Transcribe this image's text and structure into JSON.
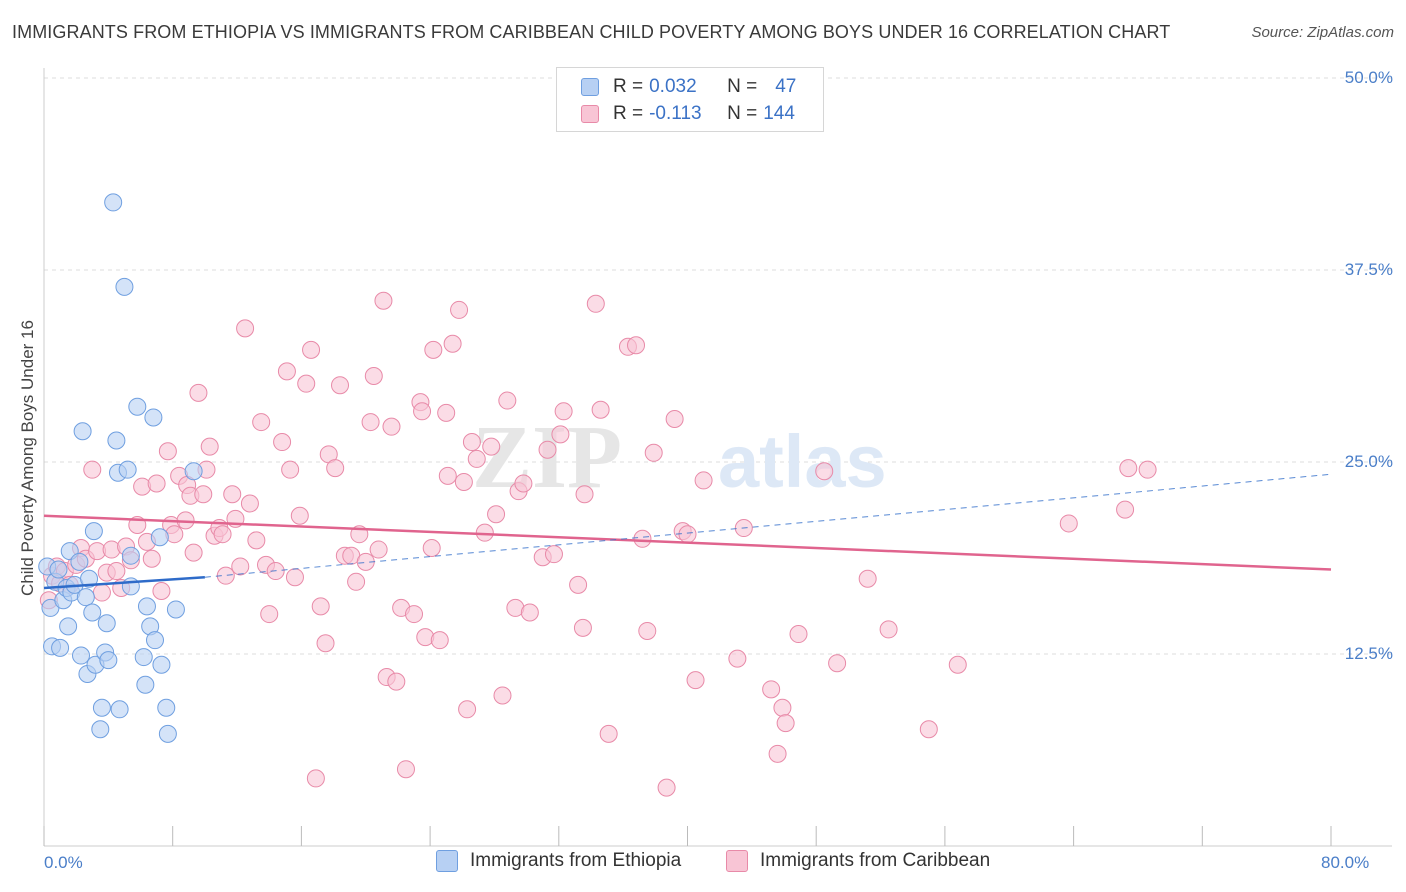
{
  "header": {
    "title": "IMMIGRANTS FROM ETHIOPIA VS IMMIGRANTS FROM CARIBBEAN CHILD POVERTY AMONG BOYS UNDER 16 CORRELATION CHART",
    "source": "Source: ZipAtlas.com"
  },
  "watermark": {
    "zip": "ZIP",
    "atlas": "atlas"
  },
  "colors": {
    "ethiopia_fill": "#b7d0f3",
    "ethiopia_stroke": "#6f9fe0",
    "ethiopia_line": "#2e6bc9",
    "caribbean_fill": "#f8c5d5",
    "caribbean_stroke": "#e88aa8",
    "caribbean_line": "#e0648e",
    "tick_text": "#4a7ec8"
  },
  "legend": {
    "rows": [
      {
        "r_label": "R = ",
        "r_value": "0.032",
        "n_label": "N = ",
        "n_value": "47"
      },
      {
        "r_label": "R = ",
        "r_value": "-0.113",
        "n_label": "N = ",
        "n_value": "144"
      }
    ],
    "bottom": [
      "Immigrants from Ethiopia",
      "Immigrants from Caribbean"
    ]
  },
  "chart_data": {
    "type": "scatter",
    "title": "IMMIGRANTS FROM ETHIOPIA VS IMMIGRANTS FROM CARIBBEAN CHILD POVERTY AMONG BOYS UNDER 16 CORRELATION CHART",
    "xlabel": "",
    "ylabel": "Child Poverty Among Boys Under 16",
    "xlim": [
      0,
      80
    ],
    "ylim": [
      0,
      50
    ],
    "x_tick_labels": [
      "0.0%",
      "80.0%"
    ],
    "y_ticks": [
      12.5,
      25.0,
      37.5,
      50.0
    ],
    "y_tick_labels": [
      "12.5%",
      "25.0%",
      "37.5%",
      "50.0%"
    ],
    "grid": true,
    "legend_position": "top-center",
    "series": [
      {
        "name": "Immigrants from Ethiopia",
        "r": 0.032,
        "n": 47,
        "trend": {
          "x": [
            0,
            10
          ],
          "y": [
            16.8,
            17.5
          ]
        },
        "trend_dashed": {
          "x": [
            10,
            80
          ],
          "y": [
            17.5,
            24.2
          ]
        },
        "points": [
          [
            0.2,
            18.2
          ],
          [
            0.4,
            15.5
          ],
          [
            0.5,
            13.0
          ],
          [
            0.7,
            17.2
          ],
          [
            0.9,
            18.0
          ],
          [
            1.0,
            12.9
          ],
          [
            1.2,
            16.0
          ],
          [
            1.4,
            16.8
          ],
          [
            1.5,
            14.3
          ],
          [
            1.6,
            19.2
          ],
          [
            1.7,
            16.5
          ],
          [
            1.9,
            17.0
          ],
          [
            2.2,
            18.5
          ],
          [
            2.3,
            12.4
          ],
          [
            2.4,
            27.0
          ],
          [
            2.6,
            16.2
          ],
          [
            2.7,
            11.2
          ],
          [
            2.8,
            17.4
          ],
          [
            3.0,
            15.2
          ],
          [
            3.1,
            20.5
          ],
          [
            3.2,
            11.8
          ],
          [
            3.5,
            7.6
          ],
          [
            3.6,
            9.0
          ],
          [
            3.8,
            12.6
          ],
          [
            3.9,
            14.5
          ],
          [
            4.0,
            12.1
          ],
          [
            4.3,
            41.9
          ],
          [
            4.5,
            26.4
          ],
          [
            4.6,
            24.3
          ],
          [
            4.7,
            8.9
          ],
          [
            5.0,
            36.4
          ],
          [
            5.2,
            24.5
          ],
          [
            5.4,
            18.9
          ],
          [
            5.4,
            16.9
          ],
          [
            5.8,
            28.6
          ],
          [
            6.2,
            12.3
          ],
          [
            6.3,
            10.5
          ],
          [
            6.4,
            15.6
          ],
          [
            6.6,
            14.3
          ],
          [
            6.8,
            27.9
          ],
          [
            6.9,
            13.4
          ],
          [
            7.2,
            20.1
          ],
          [
            7.3,
            11.8
          ],
          [
            7.6,
            9.0
          ],
          [
            7.7,
            7.3
          ],
          [
            8.2,
            15.4
          ],
          [
            9.3,
            24.4
          ]
        ]
      },
      {
        "name": "Immigrants from Caribbean",
        "r": -0.113,
        "n": 144,
        "trend": {
          "x": [
            0,
            80
          ],
          "y": [
            21.5,
            18.0
          ]
        },
        "points": [
          [
            0.3,
            16.0
          ],
          [
            0.5,
            17.6
          ],
          [
            0.8,
            18.2
          ],
          [
            1.0,
            17.1
          ],
          [
            1.3,
            17.9
          ],
          [
            1.6,
            17.0
          ],
          [
            2.0,
            18.3
          ],
          [
            2.3,
            19.4
          ],
          [
            2.6,
            18.7
          ],
          [
            3.0,
            24.5
          ],
          [
            3.3,
            19.2
          ],
          [
            3.6,
            16.5
          ],
          [
            3.9,
            17.8
          ],
          [
            4.2,
            19.3
          ],
          [
            4.5,
            17.9
          ],
          [
            4.8,
            16.8
          ],
          [
            5.1,
            19.5
          ],
          [
            5.4,
            18.6
          ],
          [
            5.8,
            20.9
          ],
          [
            6.1,
            23.4
          ],
          [
            6.4,
            19.8
          ],
          [
            6.7,
            18.7
          ],
          [
            7.0,
            23.6
          ],
          [
            7.3,
            16.6
          ],
          [
            7.7,
            25.7
          ],
          [
            7.9,
            20.9
          ],
          [
            8.1,
            20.3
          ],
          [
            8.4,
            24.1
          ],
          [
            8.8,
            21.2
          ],
          [
            8.9,
            23.5
          ],
          [
            9.1,
            22.8
          ],
          [
            9.3,
            19.1
          ],
          [
            9.6,
            29.5
          ],
          [
            9.9,
            22.9
          ],
          [
            10.1,
            24.5
          ],
          [
            10.3,
            26.0
          ],
          [
            10.6,
            20.2
          ],
          [
            10.9,
            20.7
          ],
          [
            11.1,
            20.3
          ],
          [
            11.3,
            17.6
          ],
          [
            11.7,
            22.9
          ],
          [
            11.9,
            21.3
          ],
          [
            12.2,
            18.2
          ],
          [
            12.5,
            33.7
          ],
          [
            12.8,
            22.3
          ],
          [
            13.2,
            19.9
          ],
          [
            13.5,
            27.6
          ],
          [
            13.8,
            18.3
          ],
          [
            14.0,
            15.1
          ],
          [
            14.4,
            17.9
          ],
          [
            14.8,
            26.3
          ],
          [
            15.1,
            30.9
          ],
          [
            15.3,
            24.5
          ],
          [
            15.6,
            17.5
          ],
          [
            15.9,
            21.5
          ],
          [
            16.3,
            30.1
          ],
          [
            16.6,
            32.3
          ],
          [
            16.9,
            4.4
          ],
          [
            17.2,
            15.6
          ],
          [
            17.5,
            13.2
          ],
          [
            17.7,
            25.5
          ],
          [
            18.1,
            24.6
          ],
          [
            18.4,
            30.0
          ],
          [
            18.7,
            18.9
          ],
          [
            19.1,
            18.9
          ],
          [
            19.4,
            17.2
          ],
          [
            19.6,
            20.3
          ],
          [
            20.0,
            18.5
          ],
          [
            20.3,
            27.6
          ],
          [
            20.5,
            30.6
          ],
          [
            20.8,
            19.3
          ],
          [
            21.1,
            35.5
          ],
          [
            21.3,
            11.0
          ],
          [
            21.6,
            27.3
          ],
          [
            21.9,
            10.7
          ],
          [
            22.2,
            15.5
          ],
          [
            22.5,
            5.0
          ],
          [
            23.0,
            15.1
          ],
          [
            23.4,
            28.9
          ],
          [
            23.5,
            28.3
          ],
          [
            23.7,
            13.6
          ],
          [
            24.1,
            19.4
          ],
          [
            24.2,
            32.3
          ],
          [
            24.6,
            13.4
          ],
          [
            25.0,
            28.2
          ],
          [
            25.1,
            24.1
          ],
          [
            25.4,
            32.7
          ],
          [
            25.8,
            34.9
          ],
          [
            26.1,
            23.7
          ],
          [
            26.3,
            8.9
          ],
          [
            26.6,
            26.3
          ],
          [
            26.9,
            25.2
          ],
          [
            27.4,
            20.4
          ],
          [
            27.8,
            26.0
          ],
          [
            28.1,
            21.6
          ],
          [
            28.5,
            9.8
          ],
          [
            28.8,
            29.0
          ],
          [
            29.3,
            15.5
          ],
          [
            29.5,
            23.1
          ],
          [
            29.8,
            23.6
          ],
          [
            30.2,
            15.2
          ],
          [
            31.0,
            18.8
          ],
          [
            31.3,
            25.8
          ],
          [
            31.7,
            19.0
          ],
          [
            32.1,
            26.8
          ],
          [
            32.3,
            28.3
          ],
          [
            33.2,
            17.0
          ],
          [
            33.5,
            14.2
          ],
          [
            33.6,
            22.9
          ],
          [
            34.3,
            35.3
          ],
          [
            34.6,
            28.4
          ],
          [
            35.1,
            7.3
          ],
          [
            36.3,
            32.5
          ],
          [
            36.8,
            32.6
          ],
          [
            37.2,
            20.0
          ],
          [
            37.5,
            14.0
          ],
          [
            37.9,
            25.6
          ],
          [
            38.7,
            3.8
          ],
          [
            39.2,
            27.8
          ],
          [
            39.7,
            20.5
          ],
          [
            40.0,
            20.3
          ],
          [
            40.5,
            10.8
          ],
          [
            41.0,
            23.8
          ],
          [
            43.1,
            12.2
          ],
          [
            43.5,
            20.7
          ],
          [
            45.2,
            10.2
          ],
          [
            45.6,
            6.0
          ],
          [
            45.9,
            9.0
          ],
          [
            46.1,
            8.0
          ],
          [
            46.9,
            13.8
          ],
          [
            48.5,
            24.4
          ],
          [
            49.3,
            11.9
          ],
          [
            51.2,
            17.4
          ],
          [
            52.5,
            14.1
          ],
          [
            55.0,
            7.6
          ],
          [
            56.8,
            11.8
          ],
          [
            63.7,
            21.0
          ],
          [
            67.2,
            21.9
          ],
          [
            67.4,
            24.6
          ],
          [
            68.6,
            24.5
          ]
        ]
      }
    ]
  }
}
